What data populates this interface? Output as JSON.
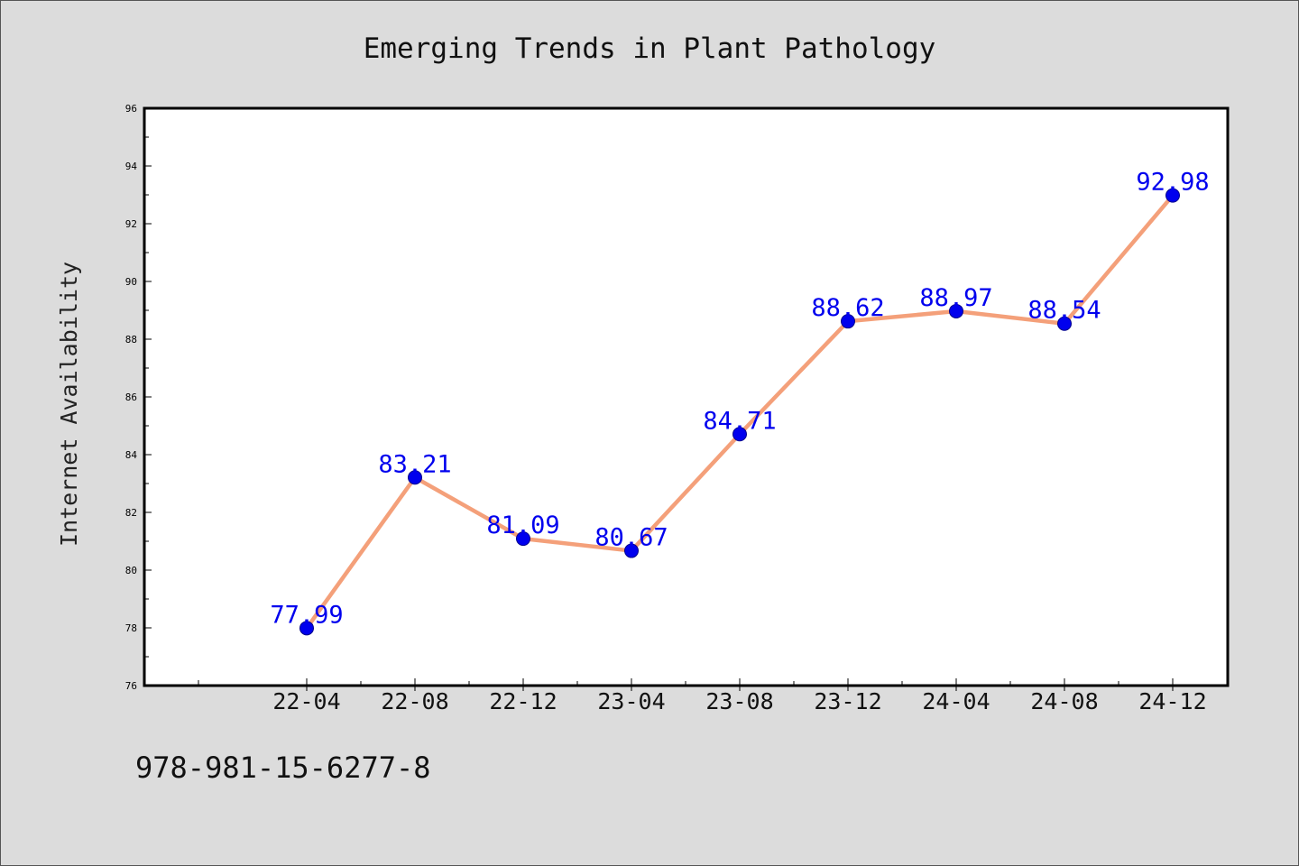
{
  "page": {
    "background": "#dcdcdc",
    "footer_text": "978-981-15-6277-8"
  },
  "chart_data": {
    "type": "line",
    "title": "Emerging Trends in Plant Pathology",
    "xlabel": "",
    "ylabel": "Internet Availability",
    "categories": [
      "22-04",
      "22-08",
      "22-12",
      "23-04",
      "23-08",
      "23-12",
      "24-04",
      "24-08",
      "24-12"
    ],
    "series": [
      {
        "values": [
          77.99,
          83.21,
          81.09,
          80.67,
          84.71,
          88.62,
          88.97,
          88.54,
          92.98
        ],
        "line_color": "#f4a07a",
        "marker_color": "#0000ee",
        "label_color": "#0000ee"
      }
    ],
    "value_labels": [
      "77.99",
      "83.21",
      "81.09",
      "80.67",
      "84.71",
      "88.62",
      "88.97",
      "88.54",
      "92.98"
    ],
    "ylim": [
      76,
      96
    ],
    "y_ticks": [
      76,
      78,
      80,
      82,
      84,
      86,
      88,
      90,
      92,
      94,
      96
    ],
    "grid": false,
    "plot_background": "#ffffff"
  }
}
